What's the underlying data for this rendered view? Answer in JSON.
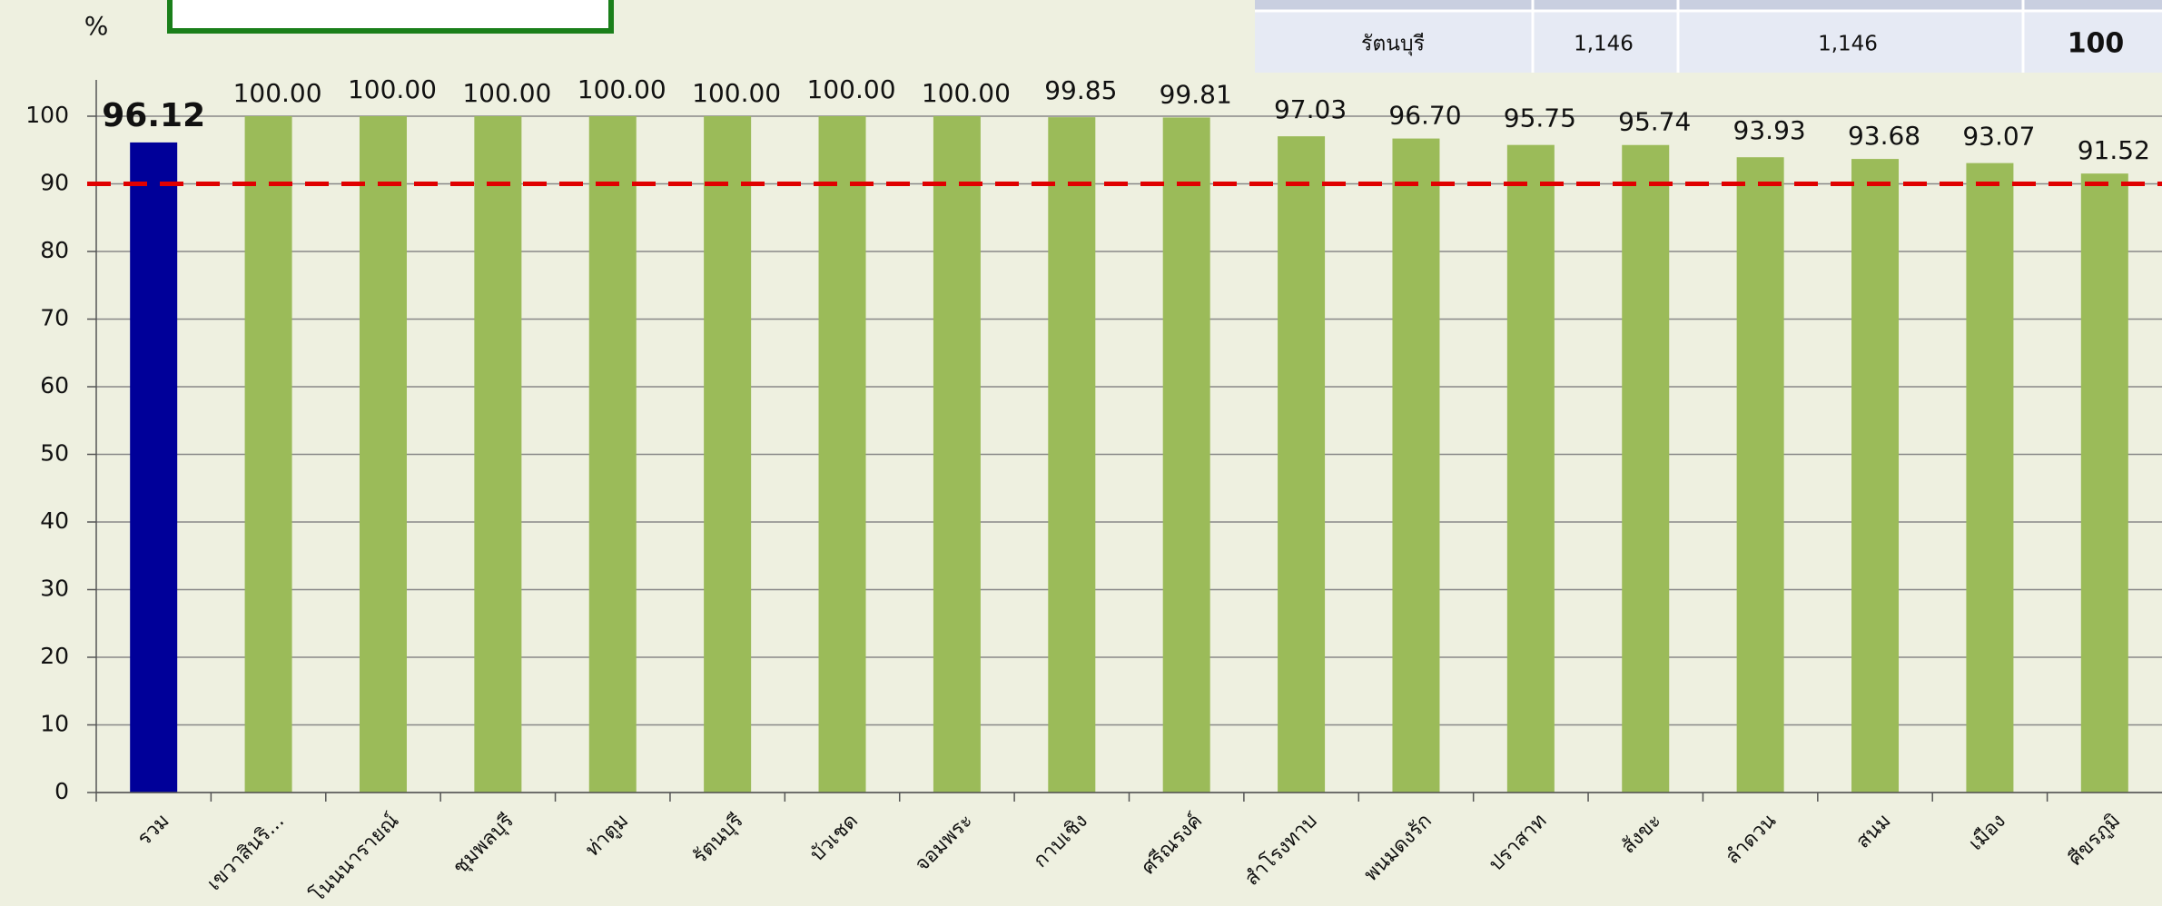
{
  "chart_data": {
    "type": "bar",
    "y_unit_label": "%",
    "categories": [
      "รวม",
      "เขวาสินริ...",
      "โนนนารายณ์",
      "ชุมพลบุรี",
      "ท่าตูม",
      "รัตนบุรี",
      "บัวเชด",
      "จอมพระ",
      "กาบเชิง",
      "ศรีณรงค์",
      "สำโรงทาบ",
      "พนมดงรัก",
      "ปราสาท",
      "สังขะ",
      "ลำดวน",
      "สนม",
      "เมือง",
      "ศีขรภูมิ"
    ],
    "values": [
      96.12,
      100,
      100,
      100,
      100,
      100,
      100,
      100,
      99.85,
      99.81,
      97.03,
      96.7,
      95.75,
      95.74,
      93.93,
      93.68,
      93.07,
      91.52
    ],
    "value_labels": [
      "96.12",
      "100.00",
      "100.00",
      "100.00",
      "100.00",
      "100.00",
      "100.00",
      "100.00",
      "99.85",
      "99.81",
      "97.03",
      "96.70",
      "95.75",
      "95.74",
      "93.93",
      "93.68",
      "93.07",
      "91.52"
    ],
    "colors": [
      "#000099",
      "#9bbb59",
      "#9bbb59",
      "#9bbb59",
      "#9bbb59",
      "#9bbb59",
      "#9bbb59",
      "#9bbb59",
      "#9bbb59",
      "#9bbb59",
      "#9bbb59",
      "#9bbb59",
      "#9bbb59",
      "#9bbb59",
      "#9bbb59",
      "#9bbb59",
      "#9bbb59",
      "#9bbb59"
    ],
    "label_colors": [
      "#ff0000",
      "#111111",
      "#111111",
      "#111111",
      "#111111",
      "#111111",
      "#111111",
      "#111111",
      "#111111",
      "#111111",
      "#111111",
      "#111111",
      "#111111",
      "#111111",
      "#111111",
      "#111111",
      "#111111",
      "#111111"
    ],
    "ylim": [
      0,
      100
    ],
    "yticks": [
      0,
      10,
      20,
      30,
      40,
      50,
      60,
      70,
      80,
      90,
      100
    ],
    "grid": true,
    "reference_line": {
      "value": 90,
      "color": "#e00000"
    }
  },
  "table": {
    "rows": [
      [
        "รัตนบุรี",
        "1,146",
        "1,146",
        "100"
      ]
    ]
  }
}
